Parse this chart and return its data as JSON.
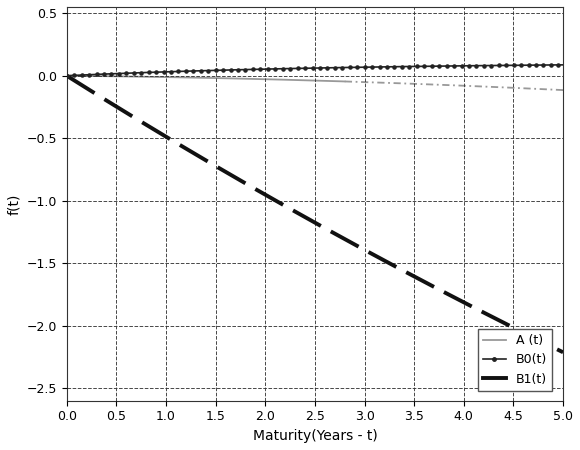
{
  "title": "",
  "xlabel": "Maturity(Years - t)",
  "ylabel": "f(t)",
  "xlim": [
    0,
    5
  ],
  "ylim": [
    -2.6,
    0.55
  ],
  "xticks": [
    0,
    0.5,
    1,
    1.5,
    2,
    2.5,
    3,
    3.5,
    4,
    4.5,
    5
  ],
  "yticks": [
    -2.5,
    -2,
    -1.5,
    -1,
    -0.5,
    0,
    0.5
  ],
  "A_color": "#999999",
  "B0_color": "#222222",
  "B1_color": "#111111",
  "legend_labels": [
    "A (t)",
    "B0(t)",
    "B1(t)"
  ],
  "B0_kappa": 0.35,
  "B0_level": 0.105,
  "A_slope": 0.008,
  "A_curve": 0.003,
  "B1_slope": 0.5
}
